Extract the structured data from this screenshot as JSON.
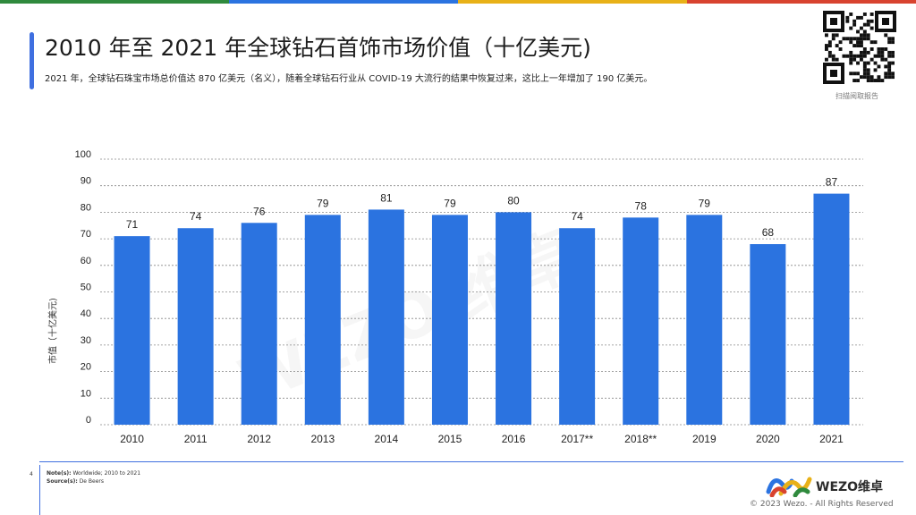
{
  "header": {
    "title": "2010 年至 2021 年全球钻石首饰市场价值（十亿美元)",
    "subtitle": "2021 年，全球钻石珠宝市场总价值达 870 亿美元（名义），随着全球钻石行业从 COVID-19 大流行的结果中恢复过来，这比上一年增加了 190 亿美元。",
    "qr_caption": "扫描阅取报告"
  },
  "colors": {
    "bar": "#2b73e0",
    "accent": "#3f6fe0",
    "topbar": [
      "#2f8a3d",
      "#2b73e0",
      "#e8b118",
      "#d8432f"
    ]
  },
  "chart_data": {
    "type": "bar",
    "categories": [
      "2010",
      "2011",
      "2012",
      "2013",
      "2014",
      "2015",
      "2016",
      "2017**",
      "2018**",
      "2019",
      "2020",
      "2021"
    ],
    "values": [
      71,
      74,
      76,
      79,
      81,
      79,
      80,
      74,
      78,
      79,
      68,
      87
    ],
    "ylabel": "市值（十亿美元)",
    "ylim": [
      0,
      100
    ],
    "yticks": [
      0,
      10,
      20,
      30,
      40,
      50,
      60,
      70,
      80,
      90,
      100
    ],
    "grid": true,
    "data_labels": true
  },
  "footer": {
    "page_number": "4",
    "notes_label": "Note(s):",
    "notes_text": "Worldwide; 2010 to 2021",
    "source_label": "Source(s):",
    "source_text": "De Beers",
    "brand": "WEZO维卓",
    "copyright": "© 2023 Wezo. - All Rights Reserved"
  }
}
